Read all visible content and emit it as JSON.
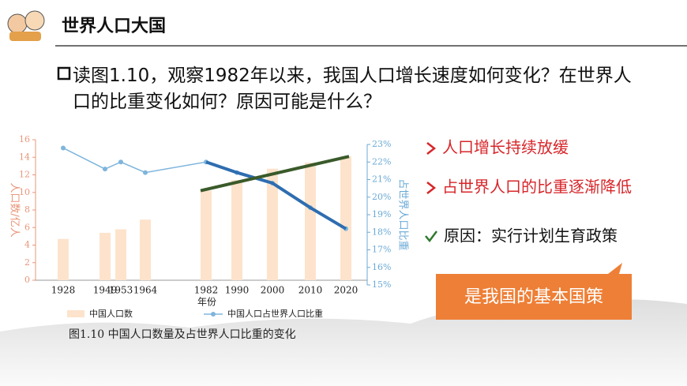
{
  "header": {
    "title": "世界人口大国"
  },
  "question": "读图1.10，观察1982年以来，我国人口增长速度如何变化？在世界人口的比重变化如何？原因可能是什么？",
  "points": [
    "人口增长持续放缓",
    "占世界人口的比重逐渐降低"
  ],
  "reason": "原因：实行计划生育政策",
  "callout": "是我国的基本国策",
  "chart_data": {
    "type": "bar-line",
    "caption": "图1.10 中国人口数量及占世界人口比重的变化",
    "xlabel": "年份",
    "ylabel": "人口数/亿人",
    "y2label": "占世界人口比重",
    "categories": [
      "1928",
      "1949",
      "1953",
      "1964",
      "1982",
      "1990",
      "2000",
      "2010",
      "2020"
    ],
    "series": [
      {
        "name": "中国人口数",
        "color": "#fde3cc",
        "values": [
          4.7,
          5.4,
          5.8,
          6.9,
          10.2,
          11.4,
          12.7,
          13.4,
          14.1
        ]
      },
      {
        "name": "中国人口占世界人口比重",
        "color": "#7fb5dc",
        "axis": "y2",
        "values": [
          22.8,
          21.6,
          22.0,
          21.4,
          22.0,
          21.4,
          20.8,
          19.4,
          18.2
        ]
      }
    ],
    "ylim": [
      0,
      16
    ],
    "yticks": [
      0,
      2,
      4,
      6,
      8,
      10,
      12,
      14,
      16
    ],
    "y2lim": [
      15,
      23
    ],
    "y2ticks": [
      {
        "value": 15,
        "label": "15%"
      },
      {
        "value": 16,
        "label": "16%"
      },
      {
        "value": 17,
        "label": "17%"
      },
      {
        "value": 18,
        "label": "18%"
      },
      {
        "value": 19,
        "label": "19%"
      },
      {
        "value": 20,
        "label": "20%"
      },
      {
        "value": 21,
        "label": "21%"
      },
      {
        "value": 22,
        "label": "22%"
      },
      {
        "value": 23,
        "label": "23%"
      }
    ],
    "ycolor": "#e8967a",
    "y2color": "#6aaad6",
    "highlight_color": "#2e6db0",
    "trend_color": "#3a5a2a"
  }
}
